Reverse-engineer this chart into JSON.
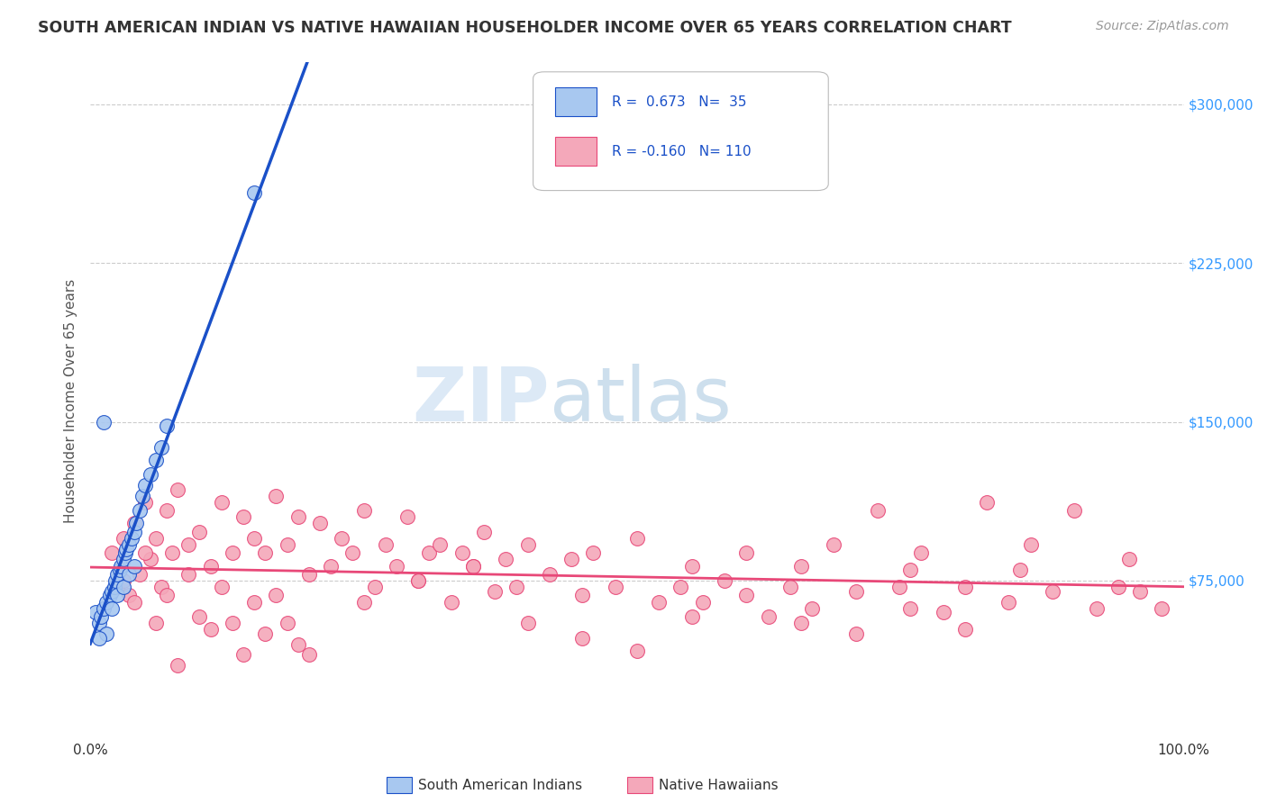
{
  "title": "SOUTH AMERICAN INDIAN VS NATIVE HAWAIIAN HOUSEHOLDER INCOME OVER 65 YEARS CORRELATION CHART",
  "source": "Source: ZipAtlas.com",
  "ylabel": "Householder Income Over 65 years",
  "ytick_labels": [
    "$75,000",
    "$150,000",
    "$225,000",
    "$300,000"
  ],
  "ytick_values": [
    75000,
    150000,
    225000,
    300000
  ],
  "ymin": 0,
  "ymax": 320000,
  "xmin": 0.0,
  "xmax": 1.0,
  "r_blue": "0.673",
  "n_blue": "35",
  "r_pink": "-0.160",
  "n_pink": "110",
  "legend_label_blue": "South American Indians",
  "legend_label_pink": "Native Hawaiians",
  "blue_color": "#A8C8F0",
  "pink_color": "#F4A8BA",
  "blue_line_color": "#1A50C8",
  "pink_line_color": "#E84878",
  "watermark_zip": "ZIP",
  "watermark_atlas": "atlas",
  "background_color": "#FFFFFF",
  "grid_color": "#CCCCCC",
  "title_color": "#333333",
  "axis_label_color": "#555555",
  "right_tick_color": "#3399FF",
  "blue_scatter_x": [
    0.005,
    0.008,
    0.01,
    0.012,
    0.015,
    0.015,
    0.018,
    0.02,
    0.02,
    0.022,
    0.023,
    0.025,
    0.025,
    0.027,
    0.028,
    0.03,
    0.03,
    0.032,
    0.033,
    0.035,
    0.035,
    0.038,
    0.04,
    0.04,
    0.042,
    0.045,
    0.048,
    0.05,
    0.055,
    0.06,
    0.065,
    0.07,
    0.012,
    0.15,
    0.008
  ],
  "blue_scatter_y": [
    60000,
    55000,
    58000,
    62000,
    65000,
    50000,
    68000,
    70000,
    62000,
    72000,
    75000,
    78000,
    68000,
    80000,
    82000,
    85000,
    72000,
    88000,
    90000,
    92000,
    78000,
    95000,
    98000,
    82000,
    102000,
    108000,
    115000,
    120000,
    125000,
    132000,
    138000,
    148000,
    150000,
    258000,
    48000
  ],
  "pink_scatter_x": [
    0.02,
    0.025,
    0.03,
    0.035,
    0.04,
    0.045,
    0.05,
    0.055,
    0.06,
    0.065,
    0.07,
    0.075,
    0.08,
    0.09,
    0.1,
    0.11,
    0.12,
    0.13,
    0.14,
    0.15,
    0.16,
    0.17,
    0.18,
    0.19,
    0.2,
    0.21,
    0.22,
    0.23,
    0.24,
    0.25,
    0.26,
    0.27,
    0.28,
    0.29,
    0.3,
    0.31,
    0.32,
    0.33,
    0.34,
    0.35,
    0.36,
    0.37,
    0.38,
    0.39,
    0.4,
    0.42,
    0.44,
    0.45,
    0.46,
    0.48,
    0.5,
    0.52,
    0.54,
    0.55,
    0.56,
    0.58,
    0.6,
    0.62,
    0.64,
    0.65,
    0.66,
    0.68,
    0.7,
    0.72,
    0.74,
    0.75,
    0.76,
    0.78,
    0.8,
    0.82,
    0.84,
    0.85,
    0.86,
    0.88,
    0.9,
    0.92,
    0.94,
    0.95,
    0.96,
    0.98,
    0.03,
    0.04,
    0.05,
    0.06,
    0.07,
    0.08,
    0.09,
    0.1,
    0.11,
    0.12,
    0.13,
    0.14,
    0.15,
    0.16,
    0.17,
    0.18,
    0.19,
    0.2,
    0.25,
    0.3,
    0.35,
    0.4,
    0.45,
    0.5,
    0.55,
    0.6,
    0.65,
    0.7,
    0.75,
    0.8
  ],
  "pink_scatter_y": [
    88000,
    72000,
    95000,
    68000,
    102000,
    78000,
    112000,
    85000,
    95000,
    72000,
    108000,
    88000,
    118000,
    92000,
    98000,
    82000,
    112000,
    88000,
    105000,
    95000,
    88000,
    115000,
    92000,
    105000,
    78000,
    102000,
    82000,
    95000,
    88000,
    108000,
    72000,
    92000,
    82000,
    105000,
    75000,
    88000,
    92000,
    65000,
    88000,
    82000,
    98000,
    70000,
    85000,
    72000,
    92000,
    78000,
    85000,
    68000,
    88000,
    72000,
    95000,
    65000,
    72000,
    82000,
    65000,
    75000,
    88000,
    58000,
    72000,
    82000,
    62000,
    92000,
    70000,
    108000,
    72000,
    80000,
    88000,
    60000,
    72000,
    112000,
    65000,
    80000,
    92000,
    70000,
    108000,
    62000,
    72000,
    85000,
    70000,
    62000,
    75000,
    65000,
    88000,
    55000,
    68000,
    35000,
    78000,
    58000,
    52000,
    72000,
    55000,
    40000,
    65000,
    50000,
    68000,
    55000,
    45000,
    40000,
    65000,
    75000,
    82000,
    55000,
    48000,
    42000,
    58000,
    68000,
    55000,
    50000,
    62000,
    52000
  ]
}
